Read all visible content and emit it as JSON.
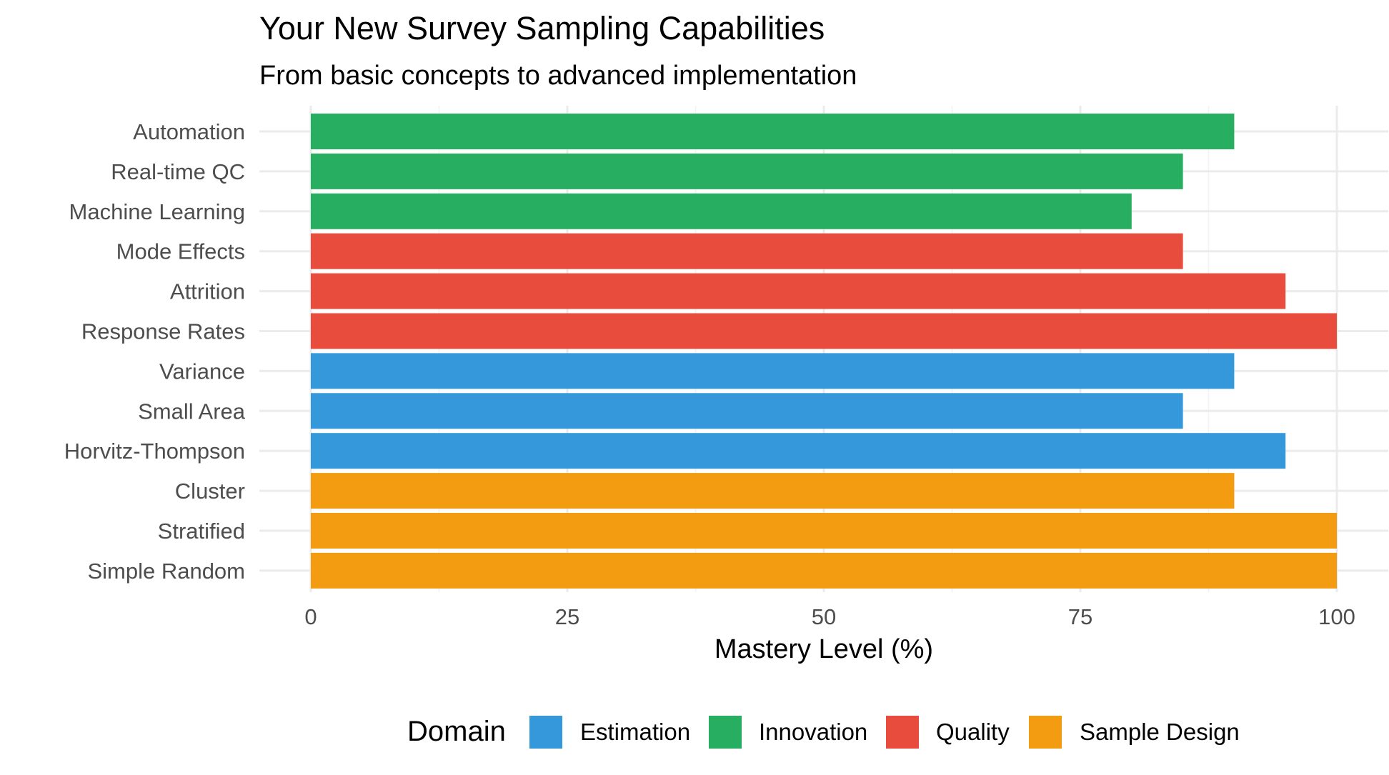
{
  "chart_data": {
    "type": "bar",
    "orientation": "horizontal",
    "title": "Your New Survey Sampling Capabilities",
    "subtitle": "From basic concepts to advanced implementation",
    "xlabel": "Mastery Level (%)",
    "ylabel": "",
    "xlim": [
      0,
      100
    ],
    "x_ticks": [
      0,
      25,
      50,
      75,
      100
    ],
    "grid": true,
    "legend": {
      "title": "Domain",
      "placement": "bottom",
      "entries": [
        {
          "label": "Estimation",
          "color": "#3498DB"
        },
        {
          "label": "Innovation",
          "color": "#27AE60"
        },
        {
          "label": "Quality",
          "color": "#E74C3C"
        },
        {
          "label": "Sample Design",
          "color": "#F39C12"
        }
      ]
    },
    "categories_top_to_bottom": [
      "Automation",
      "Real-time QC",
      "Machine Learning",
      "Mode Effects",
      "Attrition",
      "Response Rates",
      "Variance",
      "Small Area",
      "Horvitz-Thompson",
      "Cluster",
      "Stratified",
      "Simple Random"
    ],
    "bars": [
      {
        "category": "Automation",
        "value": 90,
        "domain": "Innovation"
      },
      {
        "category": "Real-time QC",
        "value": 85,
        "domain": "Innovation"
      },
      {
        "category": "Machine Learning",
        "value": 80,
        "domain": "Innovation"
      },
      {
        "category": "Mode Effects",
        "value": 85,
        "domain": "Quality"
      },
      {
        "category": "Attrition",
        "value": 95,
        "domain": "Quality"
      },
      {
        "category": "Response Rates",
        "value": 100,
        "domain": "Quality"
      },
      {
        "category": "Variance",
        "value": 90,
        "domain": "Estimation"
      },
      {
        "category": "Small Area",
        "value": 85,
        "domain": "Estimation"
      },
      {
        "category": "Horvitz-Thompson",
        "value": 95,
        "domain": "Estimation"
      },
      {
        "category": "Cluster",
        "value": 90,
        "domain": "Sample Design"
      },
      {
        "category": "Stratified",
        "value": 100,
        "domain": "Sample Design"
      },
      {
        "category": "Simple Random",
        "value": 100,
        "domain": "Sample Design"
      }
    ]
  }
}
